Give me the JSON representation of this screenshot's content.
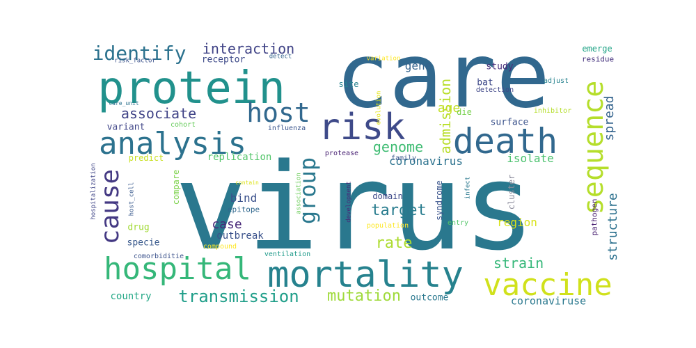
{
  "words": [
    {
      "text": "virus",
      "color": "#2a788e"
    },
    {
      "text": "care",
      "color": "#31688e"
    },
    {
      "text": "protein",
      "color": "#21918c"
    },
    {
      "text": "risk",
      "color": "#3e4a89"
    },
    {
      "text": "death",
      "color": "#31688e"
    },
    {
      "text": "analysis",
      "color": "#2c728e"
    },
    {
      "text": "mortality",
      "color": "#26828e"
    },
    {
      "text": "hospital",
      "color": "#35b779"
    },
    {
      "text": "vaccine",
      "color": "#d0e11c"
    },
    {
      "text": "host",
      "color": "#31688e"
    },
    {
      "text": "sequence",
      "color": "#b5de2b"
    },
    {
      "text": "cause",
      "color": "#443983"
    },
    {
      "text": "group",
      "color": "#2a788e"
    },
    {
      "text": "identify",
      "color": "#2c728e"
    },
    {
      "text": "transmission",
      "color": "#1f9e89"
    },
    {
      "text": "interaction",
      "color": "#414487"
    },
    {
      "text": "associate",
      "color": "#404387"
    },
    {
      "text": "mutation",
      "color": "#9fda3a"
    },
    {
      "text": "genome",
      "color": "#3fbc73"
    },
    {
      "text": "target",
      "color": "#287c8e"
    },
    {
      "text": "admission",
      "color": "#b8de29"
    },
    {
      "text": "rate",
      "color": "#addc30"
    },
    {
      "text": "strain",
      "color": "#35b779"
    },
    {
      "text": "spread",
      "color": "#33638d"
    },
    {
      "text": "structure",
      "color": "#2d718e"
    },
    {
      "text": "age",
      "color": "#c2df23"
    },
    {
      "text": "gene",
      "color": "#33638d"
    },
    {
      "text": "coronavirus",
      "color": "#2c728e"
    },
    {
      "text": "coronaviruse",
      "color": "#2a788e"
    },
    {
      "text": "isolate",
      "color": "#4ac16d"
    },
    {
      "text": "region",
      "color": "#d8e219"
    },
    {
      "text": "case",
      "color": "#482878"
    },
    {
      "text": "bind",
      "color": "#3b518b"
    },
    {
      "text": "country",
      "color": "#22a785"
    },
    {
      "text": "outbreak",
      "color": "#3b528b"
    },
    {
      "text": "replication",
      "color": "#52c569"
    },
    {
      "text": "variant",
      "color": "#404688"
    },
    {
      "text": "specie",
      "color": "#38598c"
    },
    {
      "text": "drug",
      "color": "#a2da37"
    },
    {
      "text": "outcome",
      "color": "#2a788e"
    },
    {
      "text": "surface",
      "color": "#3b528b"
    },
    {
      "text": "study",
      "color": "#472d7b"
    },
    {
      "text": "bat",
      "color": "#3e4989"
    },
    {
      "text": "site",
      "color": "#26828e"
    },
    {
      "text": "die",
      "color": "#7ad151"
    },
    {
      "text": "receptor",
      "color": "#3e4a89"
    },
    {
      "text": "emerge",
      "color": "#20a386"
    },
    {
      "text": "residue",
      "color": "#46327e"
    },
    {
      "text": "predict",
      "color": "#c8e020"
    },
    {
      "text": "compare",
      "color": "#7fd34e"
    },
    {
      "text": "domain",
      "color": "#3e4a89"
    },
    {
      "text": "syndrome",
      "color": "#3a548c"
    },
    {
      "text": "pathogen",
      "color": "#481f70"
    },
    {
      "text": "family",
      "color": "#39568c"
    },
    {
      "text": "protease",
      "color": "#482173"
    },
    {
      "text": "cluster",
      "color": "#8c8c9c"
    },
    {
      "text": "entry",
      "color": "#52c569"
    },
    {
      "text": "epitope",
      "color": "#31688e"
    },
    {
      "text": "adjust",
      "color": "#26828e"
    },
    {
      "text": "detection",
      "color": "#3f4788"
    },
    {
      "text": "inhibitor",
      "color": "#b5de2b"
    },
    {
      "text": "influenza",
      "color": "#3a548c"
    },
    {
      "text": "cohort",
      "color": "#67cc5c"
    },
    {
      "text": "risk_factor",
      "color": "#3b528b"
    },
    {
      "text": "detect",
      "color": "#33638d"
    },
    {
      "text": "variation",
      "color": "#fde725"
    },
    {
      "text": "evolution",
      "color": "#e5e419"
    },
    {
      "text": "care_unit",
      "color": "#2c728e"
    },
    {
      "text": "hospitalization",
      "color": "#404688"
    },
    {
      "text": "host_cell",
      "color": "#38598c"
    },
    {
      "text": "association",
      "color": "#6ccd5a"
    },
    {
      "text": "development",
      "color": "#472c7a"
    },
    {
      "text": "infect",
      "color": "#2a788e"
    },
    {
      "text": "contain",
      "color": "#dde318"
    },
    {
      "text": "population",
      "color": "#fde725"
    },
    {
      "text": "compound",
      "color": "#fde725"
    },
    {
      "text": "comorbiditie",
      "color": "#3b528b"
    },
    {
      "text": "ventilation",
      "color": "#1f9a8a"
    }
  ]
}
